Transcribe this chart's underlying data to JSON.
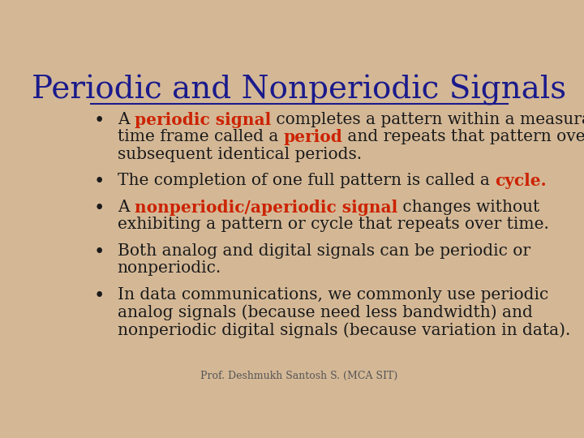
{
  "background_color": "#d4b896",
  "title": "Periodic and Nonperiodic Signals",
  "title_color": "#1a1a8c",
  "title_fontsize": 28,
  "footer": "Prof. Deshmukh Santosh S. (MCA SIT)",
  "footer_fontsize": 9,
  "footer_color": "#555555",
  "bullet_color": "#1a1a1a",
  "red_color": "#cc2200",
  "bullet_fontsize": 14.5,
  "bullets": [
    {
      "parts": [
        {
          "text": "A ",
          "bold": false,
          "color": "#1a1a1a"
        },
        {
          "text": "periodic signal",
          "bold": true,
          "color": "#cc2200"
        },
        {
          "text": " completes a pattern within a measurable\ntime frame called a ",
          "bold": false,
          "color": "#1a1a1a"
        },
        {
          "text": "period",
          "bold": true,
          "color": "#cc2200"
        },
        {
          "text": " and repeats that pattern over\nsubsequent identical periods.",
          "bold": false,
          "color": "#1a1a1a"
        }
      ]
    },
    {
      "parts": [
        {
          "text": "The completion of one full pattern is called a ",
          "bold": false,
          "color": "#1a1a1a"
        },
        {
          "text": "cycle.",
          "bold": true,
          "color": "#cc2200"
        }
      ]
    },
    {
      "parts": [
        {
          "text": "A ",
          "bold": false,
          "color": "#1a1a1a"
        },
        {
          "text": "nonperiodic/aperiodic signal",
          "bold": true,
          "color": "#cc2200"
        },
        {
          "text": " changes without\nexhibiting a pattern or cycle that repeats over time.",
          "bold": false,
          "color": "#1a1a1a"
        }
      ]
    },
    {
      "parts": [
        {
          "text": "Both analog and digital signals can be periodic or\nnonperiodic.",
          "bold": false,
          "color": "#1a1a1a"
        }
      ]
    },
    {
      "parts": [
        {
          "text": "In data communications, we commonly use periodic\nanalog signals (because need less bandwidth) and\nnonperiodic digital signals (because variation in data).",
          "bold": false,
          "color": "#1a1a1a"
        }
      ]
    }
  ]
}
